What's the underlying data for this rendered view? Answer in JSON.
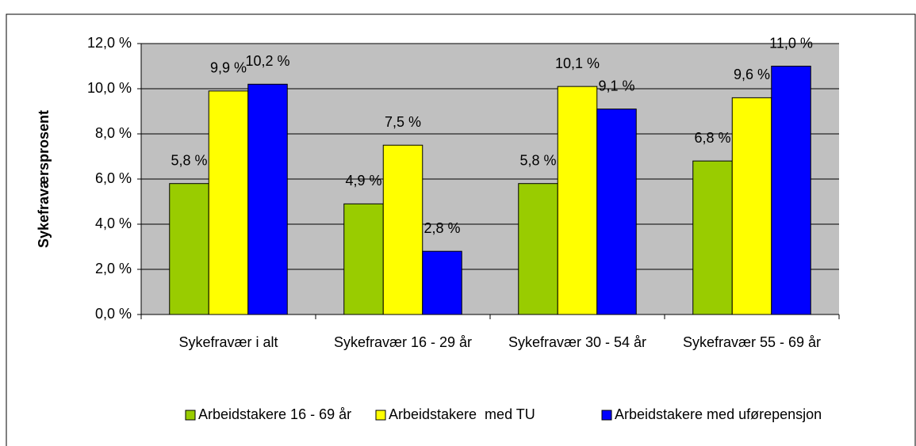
{
  "chart_data": {
    "type": "bar",
    "y_label": "Sykefraværsprosent",
    "categories": [
      "Sykefravær i alt",
      "Sykefravær 16 - 29 år",
      "Sykefravær 30 - 54 år",
      "Sykefravær 55 - 69 år"
    ],
    "series": [
      {
        "name": "Arbeidstakere 16 - 69 år",
        "color": "#99cc00",
        "values": [
          5.8,
          4.9,
          5.8,
          6.8
        ],
        "value_labels": [
          "5,8 %",
          "4,9 %",
          "5,8 %",
          "6,8 %"
        ]
      },
      {
        "name": "Arbeidstakere  med TU",
        "color": "#ffff00",
        "values": [
          9.9,
          7.5,
          10.1,
          9.6
        ],
        "value_labels": [
          "9,9 %",
          "7,5 %",
          "10,1 %",
          "9,6 %"
        ]
      },
      {
        "name": "Arbeidstakere med uførepensjon",
        "color": "#0000ff",
        "values": [
          10.2,
          2.8,
          9.1,
          11.0
        ],
        "value_labels": [
          "10,2 %",
          "2,8 %",
          "9,1 %",
          "11,0 %"
        ]
      }
    ],
    "ylim": [
      0,
      12
    ],
    "yticks": [
      {
        "value": 0,
        "label": "0,0 %"
      },
      {
        "value": 2,
        "label": "2,0 %"
      },
      {
        "value": 4,
        "label": "4,0 %"
      },
      {
        "value": 6,
        "label": "6,0 %"
      },
      {
        "value": 8,
        "label": "8,0 %"
      },
      {
        "value": 10,
        "label": "10,0 %"
      },
      {
        "value": 12,
        "label": "12,0 %"
      }
    ],
    "grid": true,
    "legend": "bottom"
  }
}
